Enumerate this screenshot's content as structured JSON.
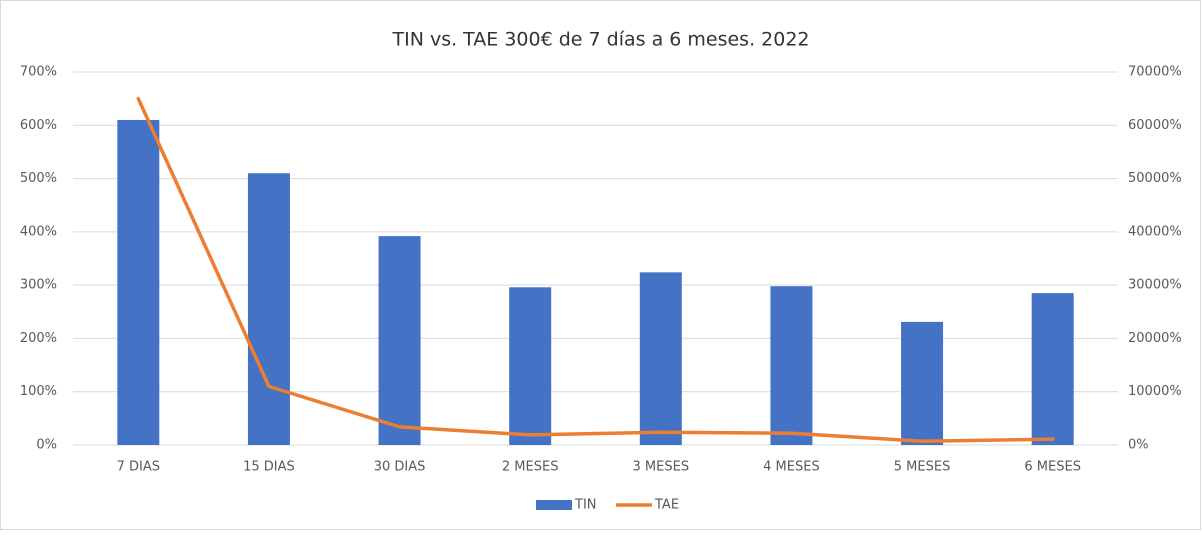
{
  "chart_data": {
    "type": "bar_line",
    "title": "TIN vs. TAE 300€ de 7 días a 6 meses. 2022",
    "categories": [
      "7 DIAS",
      "15 DIAS",
      "30 DIAS",
      "2 MESES",
      "3 MESES",
      "4 MESES",
      "5 MESES",
      "6 MESES"
    ],
    "series": [
      {
        "name": "TIN",
        "type": "bar",
        "color": "#4472c4",
        "axis": "y",
        "values": [
          610,
          510,
          392,
          296,
          324,
          298,
          231,
          285
        ]
      },
      {
        "name": "TAE",
        "type": "line",
        "color": "#ed7d31",
        "axis": "y2",
        "values": [
          65000,
          11000,
          3400,
          1900,
          2400,
          2200,
          700,
          1100
        ]
      }
    ],
    "ylim": [
      0,
      700
    ],
    "yticks": [
      {
        "value": 0,
        "label": "0%"
      },
      {
        "value": 100,
        "label": "100%"
      },
      {
        "value": 200,
        "label": "200%"
      },
      {
        "value": 300,
        "label": "300%"
      },
      {
        "value": 400,
        "label": "400%"
      },
      {
        "value": 500,
        "label": "500%"
      },
      {
        "value": 600,
        "label": "600%"
      },
      {
        "value": 700,
        "label": "700%"
      }
    ],
    "y2lim": [
      0,
      70000
    ],
    "y2ticks": [
      {
        "value": 0,
        "label": "0%"
      },
      {
        "value": 10000,
        "label": "10000%"
      },
      {
        "value": 20000,
        "label": "20000%"
      },
      {
        "value": 30000,
        "label": "30000%"
      },
      {
        "value": 40000,
        "label": "40000%"
      },
      {
        "value": 50000,
        "label": "50000%"
      },
      {
        "value": 60000,
        "label": "60000%"
      },
      {
        "value": 70000,
        "label": "70000%"
      }
    ],
    "grid": true,
    "legend": "bottom"
  }
}
